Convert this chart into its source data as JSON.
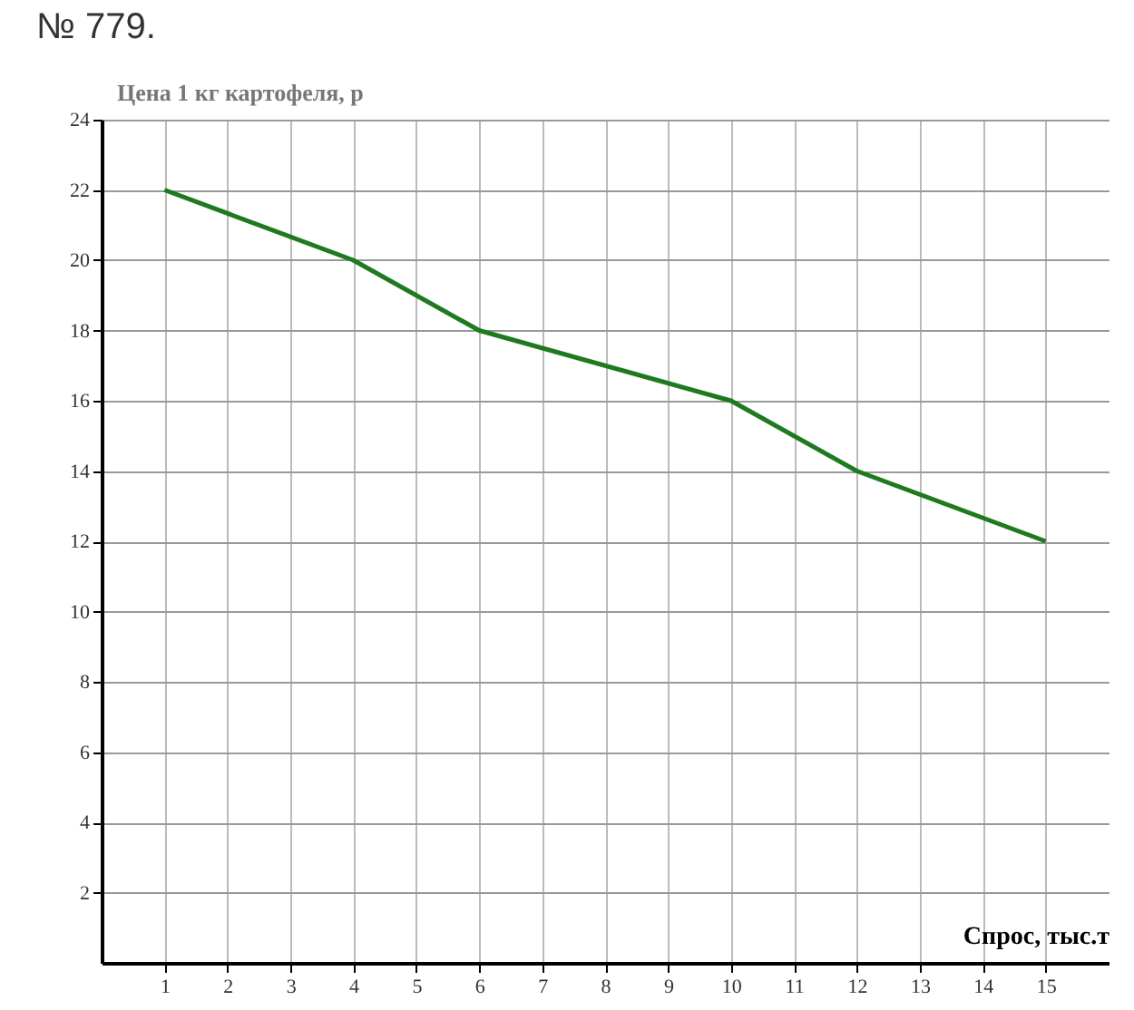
{
  "chart_data": {
    "type": "line",
    "xlabel": "Спрос, тыс.т",
    "ylabel": "Цена 1 кг картофеля, р",
    "annotations": [
      "№ 779."
    ],
    "x": [
      1,
      4,
      6,
      10,
      12,
      15
    ],
    "series": [
      {
        "color": "#1f7a1f",
        "values": [
          22,
          20,
          18,
          16,
          14,
          12
        ]
      }
    ],
    "xlim": [
      0,
      16
    ],
    "xticks": [
      1,
      2,
      3,
      4,
      5,
      6,
      7,
      8,
      9,
      10,
      11,
      12,
      13,
      14,
      15
    ],
    "ylim": [
      0,
      24
    ],
    "yticks": [
      2,
      4,
      6,
      8,
      10,
      12,
      14,
      16,
      18,
      20,
      22,
      24
    ],
    "grid": true,
    "marker": "none",
    "line_style": "solid"
  }
}
